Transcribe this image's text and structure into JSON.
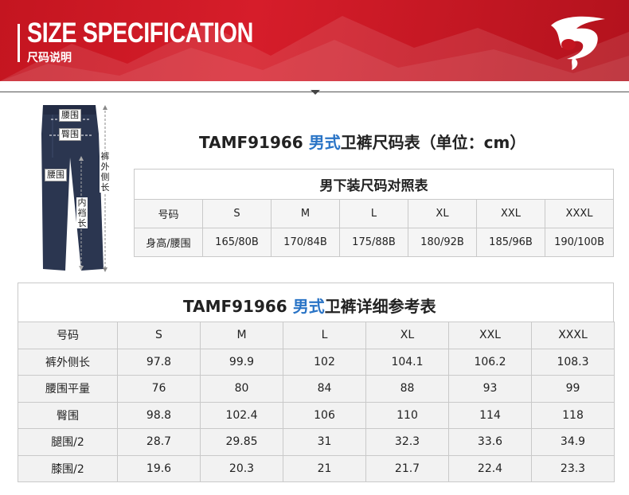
{
  "banner": {
    "title": "SIZE SPECIFICATION",
    "subtitle": "尺码说明"
  },
  "figure": {
    "labels": {
      "waist_top": "腰围",
      "hip": "臀围",
      "thigh": "腰围",
      "outer_leg": "裤外侧长",
      "inseam": "内裆长"
    }
  },
  "table1": {
    "heading_code": "TAMF91966 ",
    "heading_accent": "男式",
    "heading_rest": "卫裤尺码表（单位：cm）",
    "caption": "男下装尺码对照表",
    "row_label_size": "号码",
    "row_label_height": "身高/腰围",
    "sizes": [
      "S",
      "M",
      "L",
      "XL",
      "XXL",
      "XXXL"
    ],
    "heights": [
      "165/80B",
      "170/84B",
      "175/88B",
      "180/92B",
      "185/96B",
      "190/100B"
    ]
  },
  "table2": {
    "heading_code": "TAMF91966 ",
    "heading_accent": "男式",
    "heading_rest": "卫裤详细参考表",
    "header_label": "号码",
    "sizes": [
      "S",
      "M",
      "L",
      "XL",
      "XXL",
      "XXXL"
    ],
    "rows": [
      {
        "label": "裤外侧长",
        "values": [
          "97.8",
          "99.9",
          "102",
          "104.1",
          "106.2",
          "108.3"
        ]
      },
      {
        "label": "腰围平量",
        "values": [
          "76",
          "80",
          "84",
          "88",
          "93",
          "99"
        ]
      },
      {
        "label": "臀围",
        "values": [
          "98.8",
          "102.4",
          "106",
          "110",
          "114",
          "118"
        ]
      },
      {
        "label": "腿围/2",
        "values": [
          "28.7",
          "29.85",
          "31",
          "32.3",
          "33.6",
          "34.9"
        ]
      },
      {
        "label": "膝围/2",
        "values": [
          "19.6",
          "20.3",
          "21",
          "21.7",
          "22.4",
          "23.3"
        ]
      }
    ]
  },
  "colors": {
    "banner_red": "#c41520",
    "accent_blue": "#2a74c6",
    "pants_navy": "#2b3650"
  }
}
